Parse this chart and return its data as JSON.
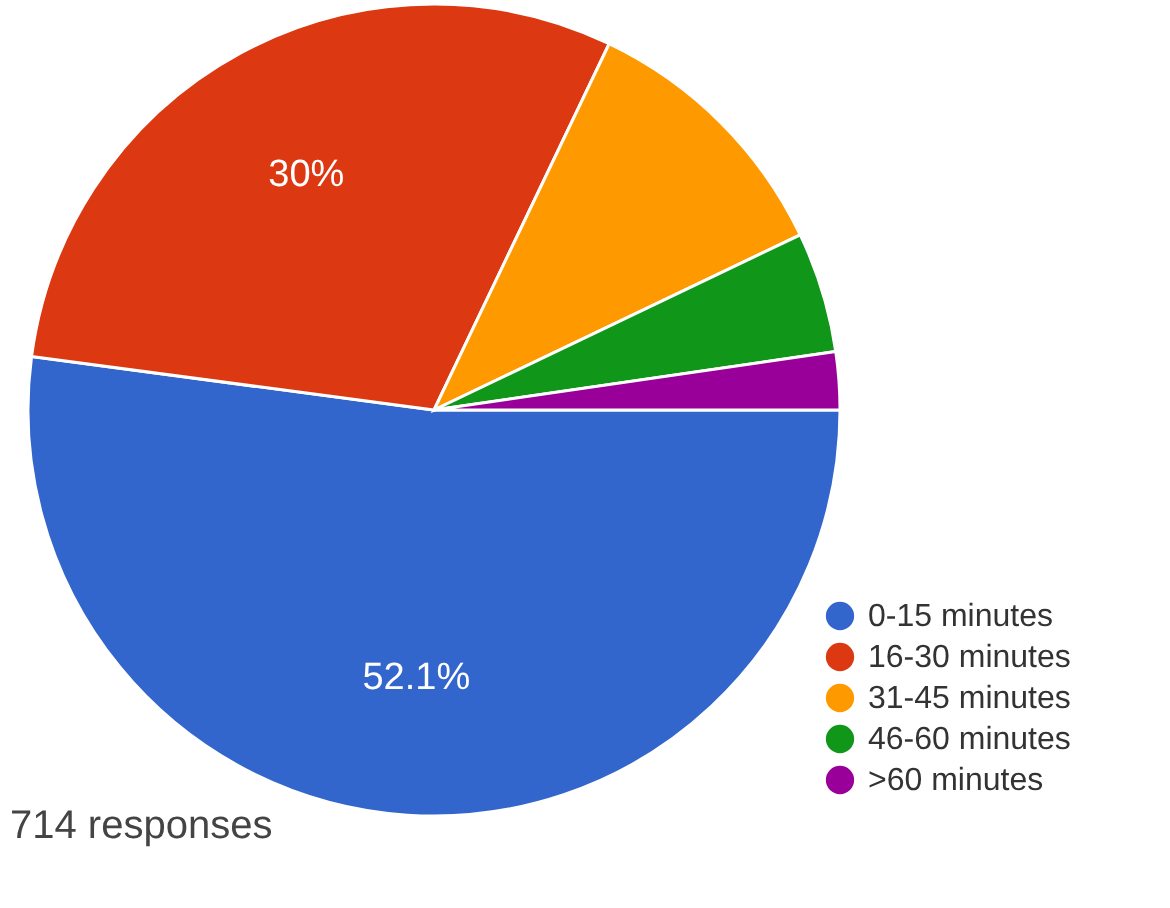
{
  "chart_data": {
    "type": "pie",
    "categories": [
      "0-15 minutes",
      "16-30 minutes",
      "31-45 minutes",
      "46-60 minutes",
      ">60 minutes"
    ],
    "values": [
      52.1,
      30,
      10.8,
      4.8,
      2.3
    ],
    "colors": [
      "#3366cc",
      "#dc3912",
      "#ff9900",
      "#109618",
      "#990099"
    ],
    "value_labels": [
      "52.1%",
      "30%",
      null,
      null,
      null
    ],
    "legend": "bottom right",
    "annotations": [
      "714 responses"
    ]
  }
}
